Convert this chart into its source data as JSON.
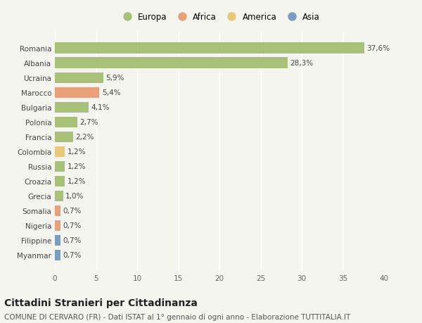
{
  "countries": [
    "Romania",
    "Albania",
    "Ucraina",
    "Marocco",
    "Bulgaria",
    "Polonia",
    "Francia",
    "Colombia",
    "Russia",
    "Croazia",
    "Grecia",
    "Somalia",
    "Nigeria",
    "Filippine",
    "Myanmar"
  ],
  "values": [
    37.6,
    28.3,
    5.9,
    5.4,
    4.1,
    2.7,
    2.2,
    1.2,
    1.2,
    1.2,
    1.0,
    0.7,
    0.7,
    0.7,
    0.7
  ],
  "labels": [
    "37,6%",
    "28,3%",
    "5,9%",
    "5,4%",
    "4,1%",
    "2,7%",
    "2,2%",
    "1,2%",
    "1,2%",
    "1,2%",
    "1,0%",
    "0,7%",
    "0,7%",
    "0,7%",
    "0,7%"
  ],
  "continents": [
    "Europa",
    "Europa",
    "Europa",
    "Africa",
    "Europa",
    "Europa",
    "Europa",
    "America",
    "Europa",
    "Europa",
    "Europa",
    "Africa",
    "Africa",
    "Asia",
    "Asia"
  ],
  "continent_colors": {
    "Europa": "#a8c07a",
    "Africa": "#e8a07a",
    "America": "#e8c87a",
    "Asia": "#7a9ec0"
  },
  "legend_order": [
    "Europa",
    "Africa",
    "America",
    "Asia"
  ],
  "legend_colors": [
    "#a8c07a",
    "#e8a07a",
    "#e8c87a",
    "#7a9ec0"
  ],
  "xlim": [
    0,
    40
  ],
  "xticks": [
    0,
    5,
    10,
    15,
    20,
    25,
    30,
    35,
    40
  ],
  "background_color": "#f5f5f0",
  "grid_color": "#ffffff",
  "title": "Cittadini Stranieri per Cittadinanza",
  "subtitle": "COMUNE DI CERVARO (FR) - Dati ISTAT al 1° gennaio di ogni anno - Elaborazione TUTTITALIA.IT",
  "title_fontsize": 10,
  "subtitle_fontsize": 7.5,
  "label_fontsize": 7.5,
  "tick_fontsize": 7.5,
  "bar_height": 0.72
}
